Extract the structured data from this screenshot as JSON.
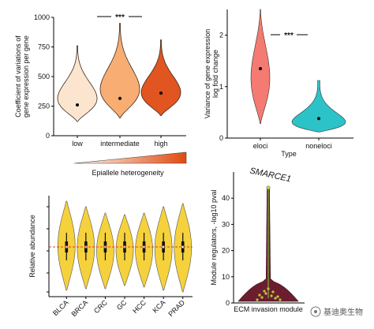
{
  "chart_data": [
    {
      "id": "A",
      "type": "violin",
      "categories": [
        "low",
        "intermediate",
        "high"
      ],
      "medians": [
        260,
        315,
        360
      ],
      "ranges": [
        [
          120,
          760
        ],
        [
          150,
          950
        ],
        [
          170,
          810
        ]
      ],
      "colors": [
        "#fbe5cf",
        "#f8ad72",
        "#e15520"
      ],
      "ylabel_lines": [
        "Coefficient of variations of",
        "gene expression per gene"
      ],
      "ylim": [
        0,
        1000
      ],
      "yticks": [
        0,
        250,
        500,
        750,
        1000
      ],
      "significance": "***",
      "gradient_label": "Epiallele heterogeneity",
      "gradient_colors": [
        "#fffaf3",
        "#e04a10"
      ]
    },
    {
      "id": "B",
      "type": "violin",
      "categories": [
        "eloci",
        "noneloci"
      ],
      "medians": [
        1.35,
        0.38
      ],
      "ranges": [
        [
          0.28,
          2.5
        ],
        [
          0.12,
          1.12
        ]
      ],
      "colors": [
        "#f47a72",
        "#2cc3c8"
      ],
      "xlabel": "Type",
      "ylabel_lines": [
        "Variance of gene expression",
        "log fold change"
      ],
      "ylim": [
        0,
        2.5
      ],
      "yticks": [
        0,
        1,
        2
      ],
      "significance": "***"
    },
    {
      "id": "C",
      "type": "violin",
      "categories": [
        "BLCA",
        "BRCA",
        "CRC",
        "GC",
        "HCC",
        "KCA",
        "PRAD"
      ],
      "color": "#f5d13c",
      "ylabel": "Relative abundance"
    },
    {
      "id": "D",
      "type": "violin",
      "categories": [
        "ECM invasion module"
      ],
      "ylabel_lines": [
        "Module regulators, -log10 pval"
      ],
      "ylim": [
        0,
        50
      ],
      "yticks": [
        0,
        10,
        20,
        30,
        40
      ],
      "annotation": "SMARCE1",
      "annotation_value": 44,
      "color": "#6b1e2e"
    }
  ],
  "watermark": "基迪奥生物"
}
